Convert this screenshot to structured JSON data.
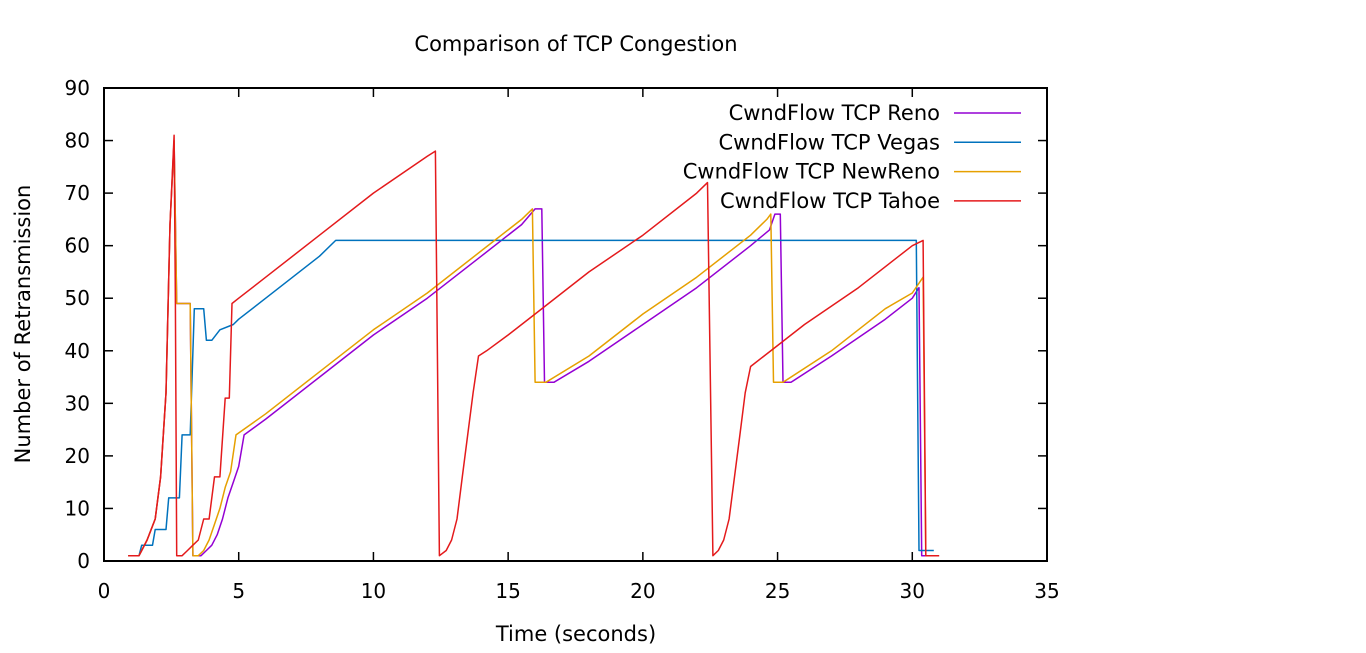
{
  "chart_data": {
    "type": "line",
    "title": "Comparison of TCP Congestion",
    "xlabel": "Time (seconds)",
    "ylabel": "Number of Retransmission",
    "xlim": [
      0,
      35
    ],
    "ylim": [
      0,
      90
    ],
    "xticks": [
      0,
      5,
      10,
      15,
      20,
      25,
      30,
      35
    ],
    "yticks": [
      0,
      10,
      20,
      30,
      40,
      50,
      60,
      70,
      80,
      90
    ],
    "grid": false,
    "legend": "top-right",
    "series": [
      {
        "name": "CwndFlow TCP Reno",
        "color": "#9400d3",
        "points": [
          [
            0.9,
            1
          ],
          [
            1.3,
            1
          ],
          [
            1.4,
            2
          ],
          [
            1.6,
            4
          ],
          [
            1.9,
            8
          ],
          [
            2.1,
            16
          ],
          [
            2.3,
            32
          ],
          [
            2.45,
            64
          ],
          [
            2.6,
            80
          ],
          [
            2.7,
            49
          ],
          [
            3.0,
            49
          ],
          [
            3.2,
            49
          ],
          [
            3.3,
            1
          ],
          [
            3.6,
            1
          ],
          [
            3.8,
            2
          ],
          [
            4.0,
            3
          ],
          [
            4.2,
            5
          ],
          [
            4.4,
            8
          ],
          [
            4.6,
            12
          ],
          [
            4.8,
            15
          ],
          [
            5.0,
            18
          ],
          [
            5.2,
            24
          ],
          [
            6.0,
            27
          ],
          [
            8.0,
            35
          ],
          [
            10.0,
            43
          ],
          [
            12.0,
            50
          ],
          [
            14.0,
            58
          ],
          [
            15.5,
            64
          ],
          [
            16.0,
            67
          ],
          [
            16.25,
            67
          ],
          [
            16.35,
            34
          ],
          [
            16.7,
            34
          ],
          [
            18.0,
            38
          ],
          [
            20.0,
            45
          ],
          [
            22.0,
            52
          ],
          [
            24.0,
            60
          ],
          [
            24.7,
            63
          ],
          [
            24.9,
            66
          ],
          [
            25.1,
            66
          ],
          [
            25.2,
            34
          ],
          [
            25.5,
            34
          ],
          [
            27.0,
            39
          ],
          [
            29.0,
            46
          ],
          [
            30.0,
            50
          ],
          [
            30.25,
            52
          ],
          [
            30.35,
            1
          ],
          [
            30.7,
            1
          ]
        ]
      },
      {
        "name": "CwndFlow TCP Vegas",
        "color": "#0072bd",
        "points": [
          [
            0.9,
            1
          ],
          [
            1.3,
            1
          ],
          [
            1.4,
            3
          ],
          [
            1.8,
            3
          ],
          [
            1.9,
            6
          ],
          [
            2.3,
            6
          ],
          [
            2.4,
            12
          ],
          [
            2.8,
            12
          ],
          [
            2.9,
            24
          ],
          [
            3.2,
            24
          ],
          [
            3.35,
            48
          ],
          [
            3.7,
            48
          ],
          [
            3.8,
            42
          ],
          [
            4.0,
            42
          ],
          [
            4.3,
            44
          ],
          [
            4.8,
            45
          ],
          [
            5.0,
            46
          ],
          [
            6.0,
            50
          ],
          [
            7.0,
            54
          ],
          [
            8.0,
            58
          ],
          [
            8.6,
            61
          ],
          [
            12.0,
            61
          ],
          [
            16.0,
            61
          ],
          [
            20.0,
            61
          ],
          [
            25.0,
            61
          ],
          [
            30.0,
            61
          ],
          [
            30.15,
            61
          ],
          [
            30.25,
            2
          ],
          [
            30.6,
            2
          ],
          [
            30.8,
            2
          ]
        ]
      },
      {
        "name": "CwndFlow TCP NewReno",
        "color": "#e6a000",
        "points": [
          [
            0.9,
            1
          ],
          [
            1.3,
            1
          ],
          [
            1.4,
            2
          ],
          [
            1.6,
            4
          ],
          [
            1.9,
            8
          ],
          [
            2.1,
            16
          ],
          [
            2.3,
            32
          ],
          [
            2.45,
            64
          ],
          [
            2.6,
            80
          ],
          [
            2.7,
            49
          ],
          [
            3.0,
            49
          ],
          [
            3.2,
            49
          ],
          [
            3.3,
            1
          ],
          [
            3.5,
            1
          ],
          [
            3.7,
            2
          ],
          [
            3.9,
            4
          ],
          [
            4.1,
            7
          ],
          [
            4.3,
            10
          ],
          [
            4.5,
            14
          ],
          [
            4.7,
            17
          ],
          [
            4.9,
            24
          ],
          [
            6.0,
            28
          ],
          [
            8.0,
            36
          ],
          [
            10.0,
            44
          ],
          [
            12.0,
            51
          ],
          [
            14.0,
            59
          ],
          [
            15.5,
            65
          ],
          [
            15.9,
            67
          ],
          [
            16.0,
            34
          ],
          [
            16.4,
            34
          ],
          [
            18.0,
            39
          ],
          [
            20.0,
            47
          ],
          [
            22.0,
            54
          ],
          [
            24.0,
            62
          ],
          [
            24.6,
            65
          ],
          [
            24.75,
            66
          ],
          [
            24.85,
            34
          ],
          [
            25.2,
            34
          ],
          [
            27.0,
            40
          ],
          [
            29.0,
            48
          ],
          [
            30.0,
            51
          ],
          [
            30.4,
            54
          ],
          [
            30.5,
            1
          ],
          [
            30.8,
            1
          ]
        ]
      },
      {
        "name": "CwndFlow TCP Tahoe",
        "color": "#e41a1c",
        "points": [
          [
            0.9,
            1
          ],
          [
            1.3,
            1
          ],
          [
            1.4,
            2
          ],
          [
            1.6,
            4
          ],
          [
            1.9,
            8
          ],
          [
            2.1,
            16
          ],
          [
            2.3,
            32
          ],
          [
            2.45,
            64
          ],
          [
            2.6,
            81
          ],
          [
            2.65,
            49
          ],
          [
            2.7,
            1
          ],
          [
            2.9,
            1
          ],
          [
            3.1,
            2
          ],
          [
            3.3,
            3
          ],
          [
            3.5,
            4
          ],
          [
            3.7,
            8
          ],
          [
            3.9,
            8
          ],
          [
            4.1,
            16
          ],
          [
            4.3,
            16
          ],
          [
            4.5,
            31
          ],
          [
            4.65,
            31
          ],
          [
            4.75,
            49
          ],
          [
            5.0,
            50
          ],
          [
            6.0,
            54
          ],
          [
            8.0,
            62
          ],
          [
            10.0,
            70
          ],
          [
            12.0,
            77
          ],
          [
            12.3,
            78
          ],
          [
            12.45,
            1
          ],
          [
            12.7,
            2
          ],
          [
            12.9,
            4
          ],
          [
            13.1,
            8
          ],
          [
            13.3,
            16
          ],
          [
            13.5,
            24
          ],
          [
            13.7,
            32
          ],
          [
            13.9,
            39
          ],
          [
            14.2,
            40
          ],
          [
            15.0,
            43
          ],
          [
            16.0,
            47
          ],
          [
            18.0,
            55
          ],
          [
            20.0,
            62
          ],
          [
            22.0,
            70
          ],
          [
            22.4,
            72
          ],
          [
            22.6,
            1
          ],
          [
            22.8,
            2
          ],
          [
            23.0,
            4
          ],
          [
            23.2,
            8
          ],
          [
            23.4,
            16
          ],
          [
            23.6,
            24
          ],
          [
            23.8,
            32
          ],
          [
            24.0,
            37
          ],
          [
            24.5,
            39
          ],
          [
            25.0,
            41
          ],
          [
            26.0,
            45
          ],
          [
            28.0,
            52
          ],
          [
            29.5,
            58
          ],
          [
            30.0,
            60
          ],
          [
            30.4,
            61
          ],
          [
            30.5,
            1
          ],
          [
            31.0,
            1
          ]
        ]
      }
    ]
  }
}
